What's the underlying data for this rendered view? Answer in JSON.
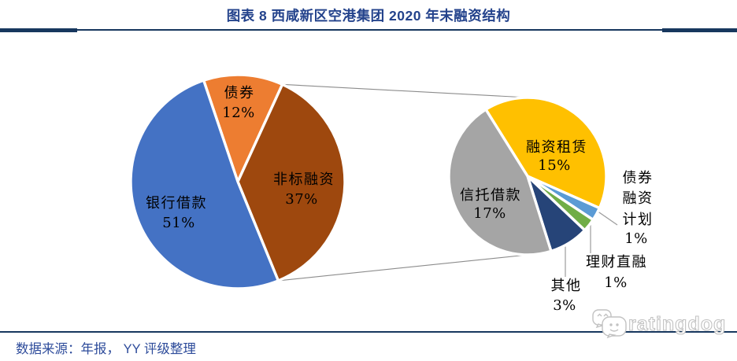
{
  "header": {
    "title": "图表 8 西咸新区空港集团 2020 年末融资结构",
    "accent_color": "#17375E",
    "title_color": "#24438C"
  },
  "footer": {
    "source": "数据来源：年报， YY 评级整理",
    "source_color": "#2E4C9B"
  },
  "watermark": {
    "text": "ratingdog",
    "icon": "wechat-icon",
    "color": "#c2c2c2"
  },
  "chart_data": [
    {
      "type": "pie",
      "role": "primary",
      "center": [
        302,
        231
      ],
      "radius": 136,
      "start_angle": -18.6,
      "slices": [
        {
          "label": "债券",
          "pct": "12%",
          "value": 12,
          "color": "#ED7D31"
        },
        {
          "label": "非标融资",
          "pct": "37%",
          "value": 37,
          "color": "#9E480E"
        },
        {
          "label": "银行借款",
          "pct": "51%",
          "value": 51,
          "color": "#4472C4"
        }
      ]
    },
    {
      "type": "pie",
      "role": "secondary-breakdown-of-非标融资",
      "center": [
        670,
        224
      ],
      "radius": 100,
      "start_angle": -32,
      "leader_lines": [
        [
          718,
          309,
          718,
          352
        ],
        [
          750,
          286,
          750,
          322
        ],
        [
          758,
          268,
          784,
          286
        ]
      ],
      "slices": [
        {
          "label": "融资租赁",
          "pct": "15%",
          "value": 15,
          "color": "#FFC000"
        },
        {
          "label": "债券融资计划",
          "label_lines": [
            "债券",
            "融资",
            "计划"
          ],
          "pct": "1%",
          "value": 1,
          "color": "#5B9BD5"
        },
        {
          "label": "理财直融",
          "pct": "1%",
          "value": 1,
          "color": "#70AD47"
        },
        {
          "label": "其他",
          "pct": "3%",
          "value": 3,
          "color": "#264478"
        },
        {
          "label": "信托借款",
          "pct": "17%",
          "value": 17,
          "color": "#A5A5A5"
        }
      ]
    }
  ]
}
